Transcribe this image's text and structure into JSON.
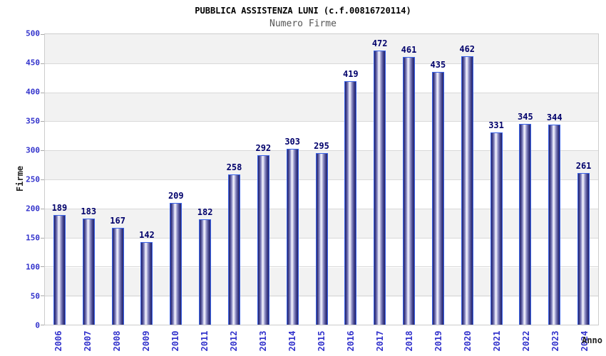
{
  "header": {
    "title": "PUBBLICA ASSISTENZA LUNI (c.f.00816720114)",
    "subtitle": "Numero Firme"
  },
  "chart_data": {
    "type": "bar",
    "title": "PUBBLICA ASSISTENZA LUNI (c.f.00816720114)",
    "subtitle": "Numero Firme",
    "categories": [
      "2006",
      "2007",
      "2008",
      "2009",
      "2010",
      "2011",
      "2012",
      "2013",
      "2014",
      "2015",
      "2016",
      "2017",
      "2018",
      "2019",
      "2020",
      "2021",
      "2022",
      "2023",
      "2024"
    ],
    "values": [
      189,
      183,
      167,
      142,
      209,
      182,
      258,
      292,
      303,
      295,
      419,
      472,
      461,
      435,
      462,
      331,
      345,
      344,
      261
    ],
    "xlabel": "Anno",
    "ylabel": "Firme",
    "ylim": [
      0,
      500
    ],
    "ytick_step": 50,
    "ytick_labels": [
      "0",
      "50",
      "100",
      "150",
      "200",
      "250",
      "300",
      "350",
      "400",
      "450",
      "500"
    ],
    "grid": "horizontal-bands-alternating",
    "legend": "none",
    "colors": {
      "background": "#ffffff",
      "band_gray": "#f2f2f2",
      "band_white": "#ffffff",
      "plot_border": "#cccccc",
      "gridline": "#d9d9d9",
      "bar_edge_dark": "#23236e",
      "bar_center_light": "#f4f4fd",
      "bar_outline": "#3a63e8",
      "value_label": "#00006b",
      "tick_label": "#3333cc",
      "axis_title": "#222222",
      "subtitle_text": "#555555"
    }
  }
}
